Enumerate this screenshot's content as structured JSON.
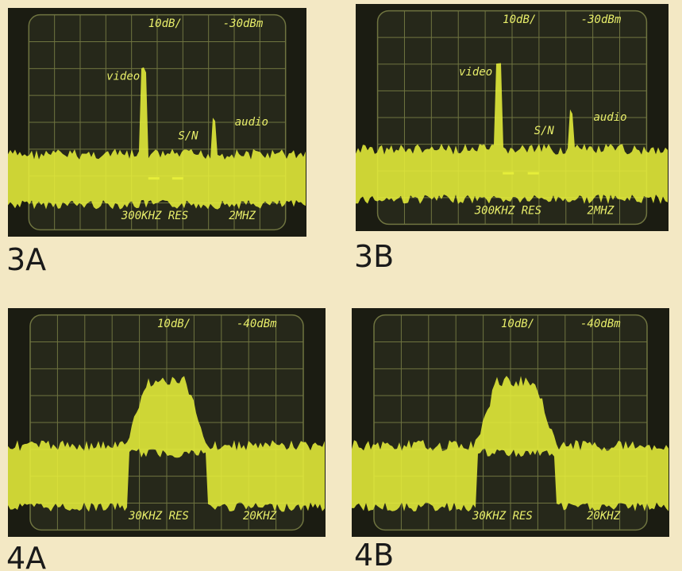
{
  "panels": [
    {
      "label": "3A",
      "screen": {
        "scale": "10dB/",
        "reference": "-30dBm",
        "resolution": "300KHZ RES",
        "span": "2MHZ",
        "annotations": {
          "video": "video",
          "sn": "S/N",
          "audio": "audio"
        }
      }
    },
    {
      "label": "3B",
      "screen": {
        "scale": "10dB/",
        "reference": "-30dBm",
        "resolution": "300KHZ RES",
        "span": "2MHZ",
        "annotations": {
          "video": "video",
          "sn": "S/N",
          "audio": "audio"
        }
      }
    },
    {
      "label": "4A",
      "screen": {
        "scale": "10dB/",
        "reference": "-40dBm",
        "resolution": "30KHZ RES",
        "span": "20KHZ"
      }
    },
    {
      "label": "4B",
      "screen": {
        "scale": "10dB/",
        "reference": "-40dBm",
        "resolution": "30KHZ RES",
        "span": "20KHZ"
      }
    }
  ]
}
